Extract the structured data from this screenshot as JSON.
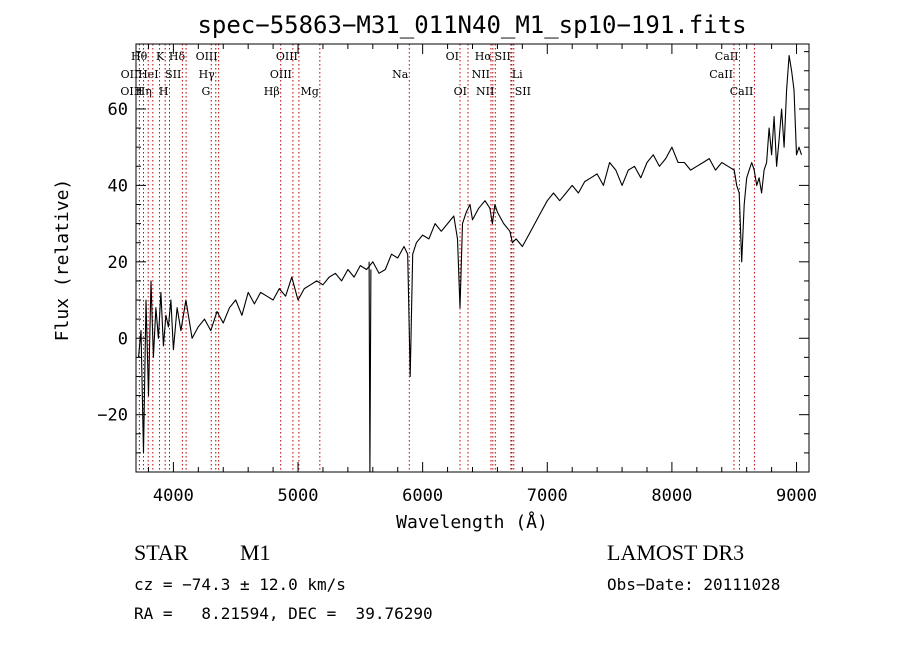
{
  "chart_data": {
    "type": "line",
    "title": "spec−55863−M31_011N40_M1_sp10−191.fits",
    "xlabel": "Wavelength (Å)",
    "ylabel": "Flux (relative)",
    "xlim": [
      3700,
      9100
    ],
    "ylim": [
      -35,
      77
    ],
    "x_ticks": [
      4000,
      5000,
      6000,
      7000,
      8000,
      9000
    ],
    "y_ticks": [
      -20,
      0,
      20,
      40,
      60
    ],
    "grid": false,
    "series": [
      {
        "name": "flux",
        "color": "#000000",
        "x": [
          3720,
          3740,
          3760,
          3780,
          3800,
          3820,
          3840,
          3860,
          3880,
          3900,
          3920,
          3940,
          3960,
          3980,
          4000,
          4030,
          4060,
          4100,
          4150,
          4200,
          4250,
          4300,
          4350,
          4400,
          4450,
          4500,
          4550,
          4600,
          4650,
          4700,
          4750,
          4800,
          4850,
          4900,
          4950,
          5000,
          5050,
          5100,
          5150,
          5200,
          5250,
          5300,
          5350,
          5400,
          5450,
          5500,
          5550,
          5600,
          5650,
          5700,
          5750,
          5800,
          5850,
          5880,
          5900,
          5920,
          5950,
          6000,
          6050,
          6100,
          6150,
          6200,
          6250,
          6280,
          6300,
          6320,
          6350,
          6380,
          6400,
          6450,
          6500,
          6540,
          6560,
          6580,
          6600,
          6650,
          6700,
          6720,
          6750,
          6800,
          6850,
          6900,
          6950,
          7000,
          7050,
          7100,
          7150,
          7200,
          7250,
          7300,
          7350,
          7400,
          7450,
          7500,
          7550,
          7600,
          7650,
          7700,
          7750,
          7800,
          7850,
          7900,
          7950,
          8000,
          8050,
          8100,
          8150,
          8200,
          8250,
          8300,
          8350,
          8400,
          8450,
          8500,
          8520,
          8540,
          8560,
          8580,
          8600,
          8620,
          8640,
          8660,
          8680,
          8700,
          8720,
          8740,
          8760,
          8780,
          8800,
          8820,
          8840,
          8860,
          8880,
          8900,
          8920,
          8940,
          8960,
          8980,
          9000,
          9020,
          9040
        ],
        "values": [
          -5,
          2,
          -30,
          10,
          -15,
          15,
          -5,
          8,
          0,
          12,
          -2,
          6,
          3,
          10,
          -3,
          8,
          2,
          10,
          0,
          3,
          5,
          2,
          7,
          4,
          8,
          10,
          6,
          12,
          9,
          12,
          11,
          10,
          13,
          11,
          16,
          10,
          13,
          14,
          15,
          14,
          16,
          17,
          15,
          18,
          16,
          19,
          18,
          20,
          17,
          18,
          22,
          21,
          24,
          22,
          -10,
          22,
          25,
          27,
          26,
          30,
          28,
          30,
          32,
          26,
          8,
          30,
          33,
          35,
          31,
          34,
          36,
          34,
          30,
          35,
          33,
          30,
          28,
          25,
          26,
          24,
          27,
          30,
          33,
          36,
          38,
          36,
          38,
          40,
          38,
          41,
          42,
          43,
          40,
          46,
          44,
          40,
          44,
          45,
          42,
          46,
          48,
          45,
          47,
          50,
          46,
          46,
          44,
          45,
          46,
          47,
          44,
          46,
          45,
          44,
          40,
          38,
          20,
          35,
          42,
          44,
          46,
          44,
          40,
          42,
          38,
          44,
          46,
          55,
          48,
          58,
          45,
          52,
          60,
          50,
          65,
          74,
          70,
          65,
          48,
          50,
          48
        ]
      },
      {
        "name": "absorption-dip",
        "color": "#000000",
        "x": [
          5570,
          5577,
          5585
        ],
        "values": [
          20,
          -35,
          18
        ]
      }
    ],
    "lines": [
      {
        "label": "Hθ",
        "x": 3798,
        "row": 0,
        "a": "end"
      },
      {
        "label": "K",
        "x": 3934,
        "row": 0,
        "a": "end"
      },
      {
        "label": "Hδ",
        "x": 4102,
        "row": 0,
        "a": "end"
      },
      {
        "label": "OIII",
        "x": 4363,
        "row": 0,
        "a": "end"
      },
      {
        "label": "OIII",
        "x": 5007,
        "row": 0,
        "a": "end"
      },
      {
        "label": "OI",
        "x": 6300,
        "row": 0,
        "a": "end"
      },
      {
        "label": "Hα",
        "x": 6563,
        "row": 0,
        "a": "end"
      },
      {
        "label": "SII",
        "x": 6716,
        "row": 0,
        "a": "end"
      },
      {
        "label": "CaII",
        "x": 8542,
        "row": 0,
        "a": "end"
      },
      {
        "label": "OII",
        "x": 3727,
        "row": 1,
        "a": "end"
      },
      {
        "label": "HeI",
        "x": 3889,
        "row": 1,
        "a": "end"
      },
      {
        "label": "SII",
        "x": 4072,
        "row": 1,
        "a": "end"
      },
      {
        "label": "Hγ",
        "x": 4340,
        "row": 1,
        "a": "end"
      },
      {
        "label": "OIII",
        "x": 4959,
        "row": 1,
        "a": "end"
      },
      {
        "label": "Na",
        "x": 5893,
        "row": 1,
        "a": "end"
      },
      {
        "label": "NII",
        "x": 6548,
        "row": 1,
        "a": "end"
      },
      {
        "label": "Li",
        "x": 6708,
        "row": 1,
        "a": "start"
      },
      {
        "label": "CaII",
        "x": 8498,
        "row": 1,
        "a": "end"
      },
      {
        "label": "OIII",
        "x": 3760,
        "row": 2,
        "a": "end"
      },
      {
        "label": "Hη",
        "x": 3835,
        "row": 2,
        "a": "end"
      },
      {
        "label": "H",
        "x": 3969,
        "row": 2,
        "a": "end"
      },
      {
        "label": "G",
        "x": 4304,
        "row": 2,
        "a": "end"
      },
      {
        "label": "Hβ",
        "x": 4861,
        "row": 2,
        "a": "end"
      },
      {
        "label": "Mg",
        "x": 5175,
        "row": 2,
        "a": "end"
      },
      {
        "label": "OI",
        "x": 6364,
        "row": 2,
        "a": "end"
      },
      {
        "label": "NII",
        "x": 6583,
        "row": 2,
        "a": "end"
      },
      {
        "label": "SII",
        "x": 6731,
        "row": 2,
        "a": "start"
      },
      {
        "label": "CaII",
        "x": 8662,
        "row": 2,
        "a": "end"
      }
    ]
  },
  "info": {
    "object_class": "STAR",
    "subclass": "M1",
    "survey": "LAMOST DR3",
    "cz_line": "cz = −74.3 ± 12.0 km/s",
    "obs_date_line": "Obs−Date: 20111028",
    "radec_line": "RA =   8.21594, DEC =  39.76290"
  }
}
